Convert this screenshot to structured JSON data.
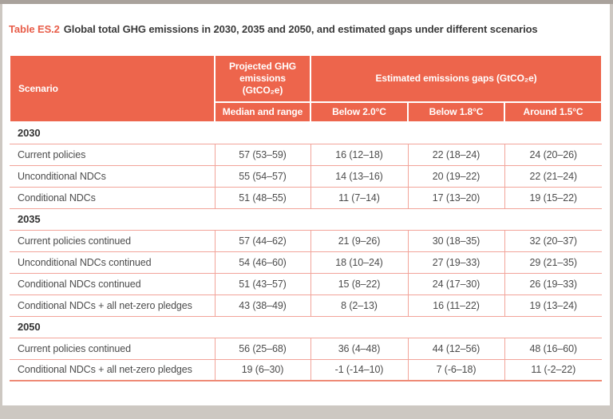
{
  "colors": {
    "header_fill": "#ed654c",
    "rule_lines": "#f2a49a",
    "caption_accent": "#e85d49",
    "body_text": "#4c4c4c",
    "frame_background": "#cdc8c2",
    "paper": "#ffffff"
  },
  "title": {
    "label": "Table ES.2",
    "text": "Global total GHG emissions in 2030, 2035 and 2050, and estimated gaps under different scenarios"
  },
  "table": {
    "header": {
      "scenario": "Scenario",
      "projected": "Projected GHG emissions (GtCO₂e)",
      "gaps_group": "Estimated emissions gaps (GtCO₂e)",
      "median": "Median and range",
      "below_2_0": "Below 2.0°C",
      "below_1_8": "Below 1.8°C",
      "around_1_5": "Around 1.5°C"
    },
    "sections": [
      {
        "year": "2030",
        "rows": [
          [
            "Current policies",
            "57 (53–59)",
            "16 (12–18)",
            "22 (18–24)",
            "24 (20–26)"
          ],
          [
            "Unconditional NDCs",
            "55 (54–57)",
            "14 (13–16)",
            "20 (19–22)",
            "22 (21–24)"
          ],
          [
            "Conditional NDCs",
            "51 (48–55)",
            "11 (7–14)",
            "17 (13–20)",
            "19 (15–22)"
          ]
        ]
      },
      {
        "year": "2035",
        "rows": [
          [
            "Current policies continued",
            "57 (44–62)",
            "21 (9–26)",
            "30 (18–35)",
            "32 (20–37)"
          ],
          [
            "Unconditional NDCs continued",
            "54 (46–60)",
            "18 (10–24)",
            "27 (19–33)",
            "29 (21–35)"
          ],
          [
            "Conditional NDCs continued",
            "51 (43–57)",
            "15 (8–22)",
            "24 (17–30)",
            "26 (19–33)"
          ],
          [
            "Conditional NDCs + all net-zero pledges",
            "43 (38–49)",
            "8 (2–13)",
            "16 (11–22)",
            "19 (13–24)"
          ]
        ]
      },
      {
        "year": "2050",
        "rows": [
          [
            "Current policies continued",
            "56 (25–68)",
            "36 (4–48)",
            "44 (12–56)",
            "48 (16–60)"
          ],
          [
            "Conditional NDCs + all net-zero pledges",
            "19 (6–30)",
            "-1 (-14–10)",
            "7 (-6–18)",
            "11 (-2–22)"
          ]
        ]
      }
    ]
  },
  "chart_data": {
    "type": "table",
    "title": "Table ES.2 Global total GHG emissions in 2030, 2035 and 2050, and estimated gaps under different scenarios",
    "columns": [
      "Scenario",
      "Projected GHG emissions (GtCO₂e) — Median and range",
      "Estimated emissions gap Below 2.0°C",
      "Estimated emissions gap Below 1.8°C",
      "Estimated emissions gap Around 1.5°C"
    ],
    "rows": [
      [
        "2030 — Current policies",
        "57 (53–59)",
        "16 (12–18)",
        "22 (18–24)",
        "24 (20–26)"
      ],
      [
        "2030 — Unconditional NDCs",
        "55 (54–57)",
        "14 (13–16)",
        "20 (19–22)",
        "22 (21–24)"
      ],
      [
        "2030 — Conditional NDCs",
        "51 (48–55)",
        "11 (7–14)",
        "17 (13–20)",
        "19 (15–22)"
      ],
      [
        "2035 — Current policies continued",
        "57 (44–62)",
        "21 (9–26)",
        "30 (18–35)",
        "32 (20–37)"
      ],
      [
        "2035 — Unconditional NDCs continued",
        "54 (46–60)",
        "18 (10–24)",
        "27 (19–33)",
        "29 (21–35)"
      ],
      [
        "2035 — Conditional NDCs continued",
        "51 (43–57)",
        "15 (8–22)",
        "24 (17–30)",
        "26 (19–33)"
      ],
      [
        "2035 — Conditional NDCs + all net-zero pledges",
        "43 (38–49)",
        "8 (2–13)",
        "16 (11–22)",
        "19 (13–24)"
      ],
      [
        "2050 — Current policies continued",
        "56 (25–68)",
        "36 (4–48)",
        "44 (12–56)",
        "48 (16–60)"
      ],
      [
        "2050 — Conditional NDCs + all net-zero pledges",
        "19 (6–30)",
        "-1 (-14–10)",
        "7 (-6–18)",
        "11 (-2–22)"
      ]
    ]
  }
}
